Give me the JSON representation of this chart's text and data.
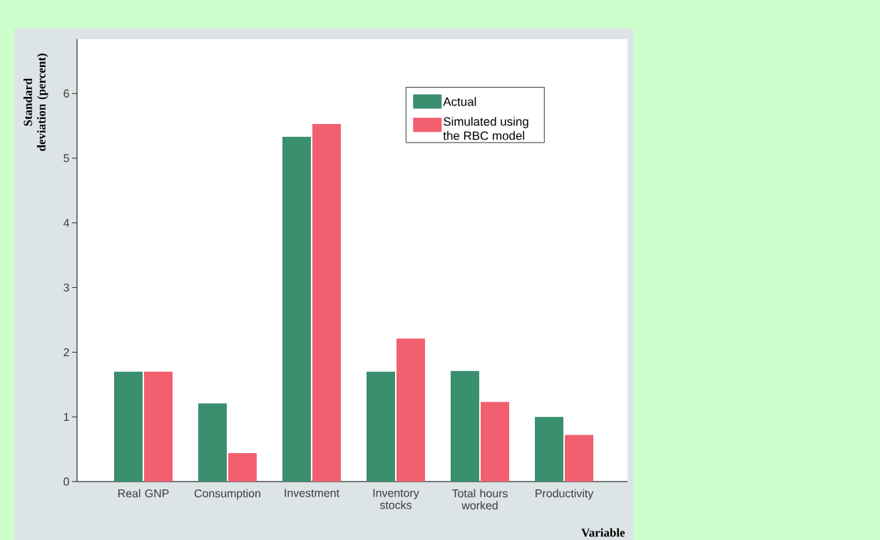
{
  "chart_data": {
    "type": "bar",
    "ylabel": "Standard deviation (percent)",
    "xlabel": "Variable",
    "categories": [
      "Real GNP",
      "Consumption",
      "Investment",
      "Inventory stocks",
      "Total hours worked",
      "Productivity"
    ],
    "series": [
      {
        "name": "Actual",
        "color": "#3a8f6e",
        "values": [
          1.7,
          1.21,
          5.33,
          1.7,
          1.71,
          1.0
        ]
      },
      {
        "name": "Simulated using the RBC model",
        "color": "#f2606f",
        "values": [
          1.7,
          0.44,
          5.53,
          2.21,
          1.23,
          0.72
        ]
      }
    ],
    "ylim": [
      0,
      6.84
    ],
    "yticks": [
      0,
      1,
      2,
      3,
      4,
      5,
      6
    ],
    "grid": false,
    "legend": "top right"
  }
}
